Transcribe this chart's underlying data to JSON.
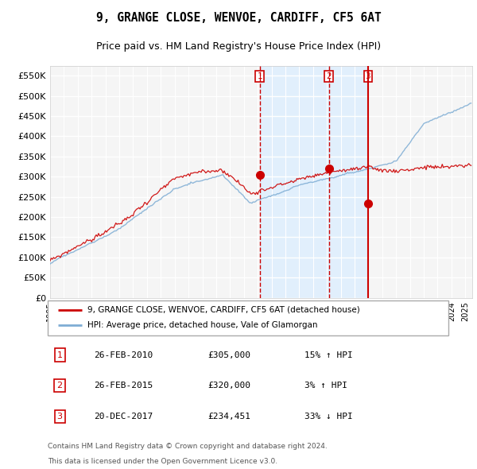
{
  "title": "9, GRANGE CLOSE, WENVOE, CARDIFF, CF5 6AT",
  "subtitle": "Price paid vs. HM Land Registry's House Price Index (HPI)",
  "ytick_values": [
    0,
    50000,
    100000,
    150000,
    200000,
    250000,
    300000,
    350000,
    400000,
    450000,
    500000,
    550000
  ],
  "ylim": [
    0,
    575000
  ],
  "xlim_start": 1995.0,
  "xlim_end": 2025.5,
  "hpi_color": "#7eadd4",
  "price_color": "#cc0000",
  "background_color": "#f0f0f0",
  "plot_bg_color": "#f5f5f5",
  "shade_color": "#ddeeff",
  "legend_label_price": "9, GRANGE CLOSE, WENVOE, CARDIFF, CF5 6AT (detached house)",
  "legend_label_hpi": "HPI: Average price, detached house, Vale of Glamorgan",
  "sales": [
    {
      "num": 1,
      "date_label": "26-FEB-2010",
      "price_label": "£305,000",
      "hpi_label": "15% ↑ HPI",
      "year": 2010.15,
      "price": 305000,
      "line_style": "dashed"
    },
    {
      "num": 2,
      "date_label": "26-FEB-2015",
      "price_label": "£320,000",
      "hpi_label": "3% ↑ HPI",
      "year": 2015.15,
      "price": 320000,
      "line_style": "dashed"
    },
    {
      "num": 3,
      "date_label": "20-DEC-2017",
      "price_label": "£234,451",
      "hpi_label": "33% ↓ HPI",
      "year": 2017.97,
      "price": 234451,
      "line_style": "solid"
    }
  ],
  "footer_line1": "Contains HM Land Registry data © Crown copyright and database right 2024.",
  "footer_line2": "This data is licensed under the Open Government Licence v3.0."
}
